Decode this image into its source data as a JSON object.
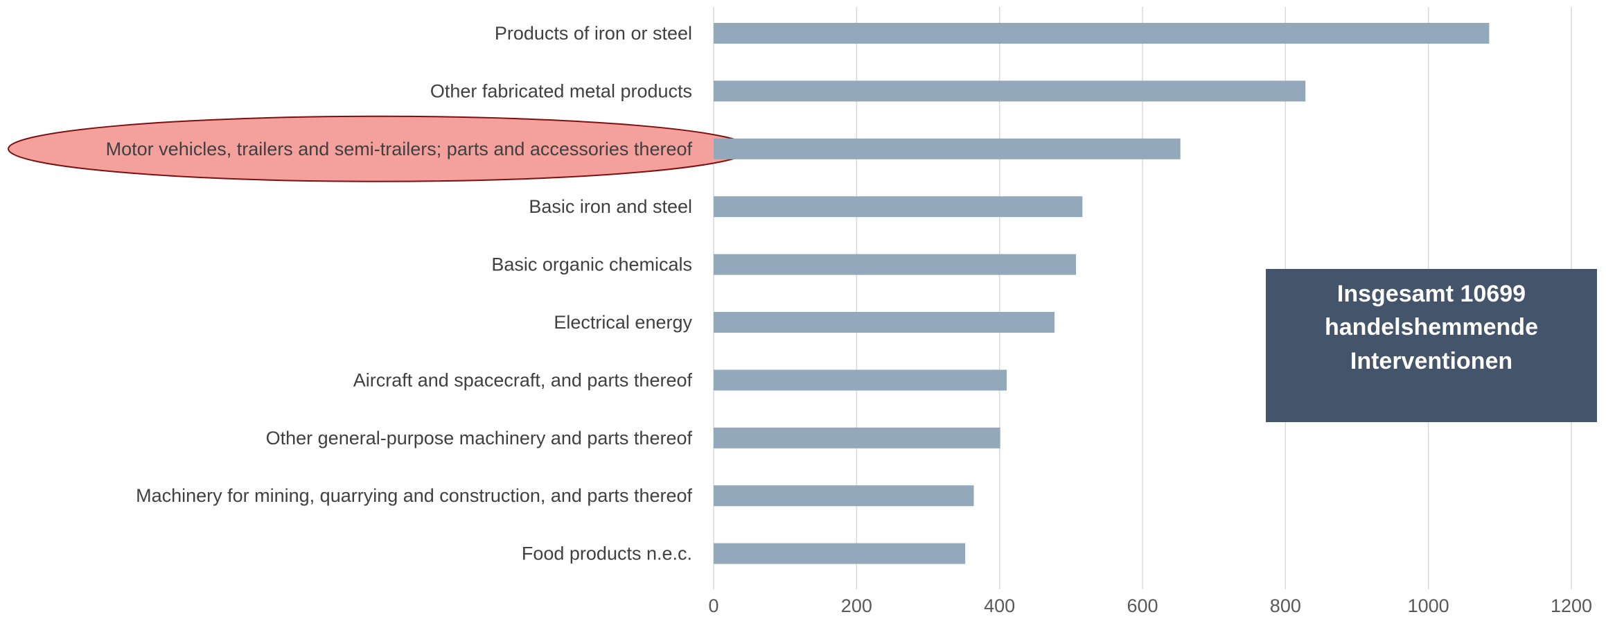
{
  "chart_data": {
    "type": "bar",
    "orientation": "horizontal",
    "categories": [
      "Products of iron or steel",
      "Other fabricated metal products",
      "Motor vehicles, trailers and semi-trailers; parts and accessories thereof",
      "Basic iron and steel",
      "Basic organic chemicals",
      "Electrical energy",
      "Aircraft and spacecraft, and parts thereof",
      "Other general-purpose machinery and parts thereof",
      "Machinery for mining, quarrying and construction, and parts thereof",
      "Food products n.e.c."
    ],
    "values": [
      1085,
      828,
      653,
      516,
      507,
      477,
      410,
      401,
      364,
      352
    ],
    "xlim": [
      0,
      1200
    ],
    "xticks": [
      "0",
      "200",
      "400",
      "600",
      "800",
      "1000",
      "1200"
    ],
    "grid": "vertical",
    "legend": "none",
    "highlighted_category": "Motor vehicles, trailers and semi-trailers; parts and accessories thereof",
    "callout": {
      "lines": [
        "Insgesamt 10699",
        "handelshemmende",
        "Interventionen"
      ],
      "position": "right-middle"
    },
    "colors": {
      "bar": "#94a8bc",
      "highlight_fill": "#f4a09c",
      "highlight_border": "#7a1010",
      "callout_bg": "#44546a",
      "grid": "#d9d9d9",
      "label": "#404040"
    }
  }
}
